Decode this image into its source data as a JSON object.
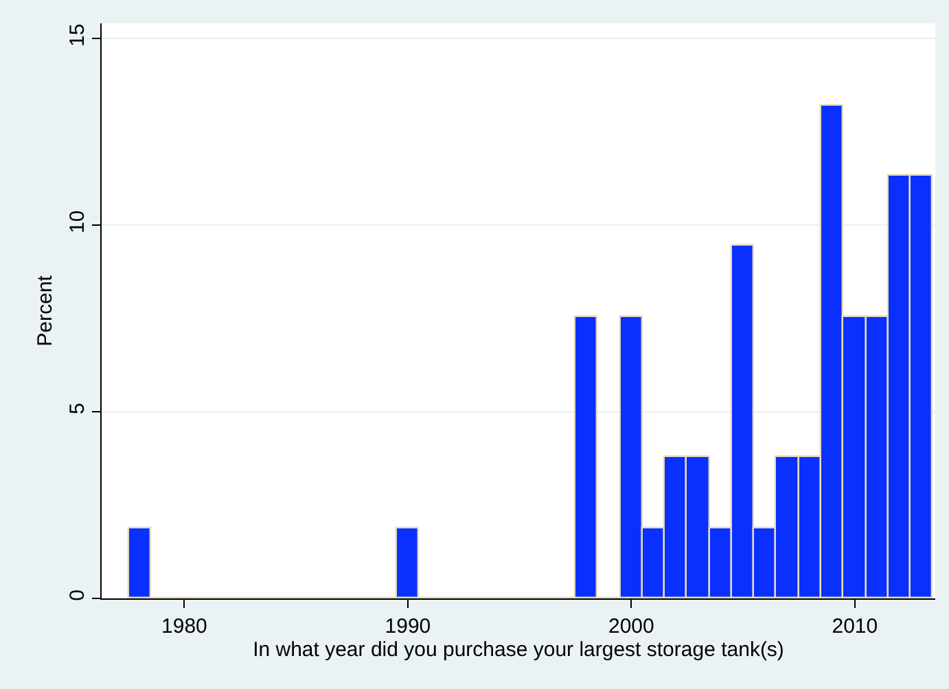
{
  "chart_data": {
    "type": "histogram",
    "xlabel": "In what year did you purchase your largest storage tank(s)",
    "ylabel": "Percent",
    "bins": [
      1977.5,
      1978.5,
      1979.5,
      1980.5,
      1981.5,
      1982.5,
      1983.5,
      1984.5,
      1985.5,
      1986.5,
      1987.5,
      1988.5,
      1989.5,
      1990.5,
      1991.5,
      1992.5,
      1993.5,
      1994.5,
      1995.5,
      1996.5,
      1997.5,
      1998.5,
      1999.5,
      2000.5,
      2001.5,
      2002.5,
      2003.5,
      2004.5,
      2005.5,
      2006.5,
      2007.5,
      2008.5,
      2009.5,
      2010.5,
      2011.5,
      2012.5,
      2013.5
    ],
    "values": [
      1.89,
      0,
      0,
      0,
      0,
      0,
      0,
      0,
      0,
      0,
      0,
      0,
      1.89,
      0,
      0,
      0,
      0,
      0,
      0,
      0,
      7.55,
      0,
      7.55,
      1.89,
      3.77,
      3.77,
      1.89,
      9.43,
      1.89,
      3.77,
      3.77,
      13.2,
      7.55,
      7.55,
      11.32,
      11.32
    ],
    "color": "#0a30ff",
    "xlim": [
      1976.3,
      2013.6
    ],
    "xticks": [
      1980,
      1990,
      2000,
      2010
    ],
    "ylim": [
      0,
      15.4
    ],
    "yticks": [
      0,
      5,
      10,
      15
    ],
    "grid": "y",
    "legend": false
  }
}
